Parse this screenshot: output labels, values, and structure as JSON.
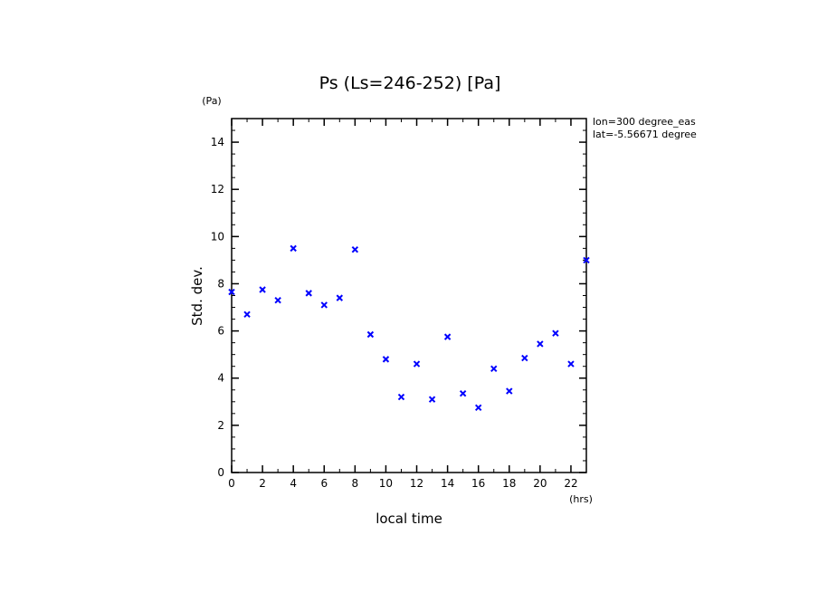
{
  "chart_data": {
    "type": "scatter",
    "title": "Ps (Ls=246-252) [Pa]",
    "xlabel": "local time",
    "ylabel": "Std. dev.",
    "x_unit": "(hrs)",
    "y_unit": "(Pa)",
    "annotations": [
      "lon=300 degree_eas",
      "lat=-5.56671 degree"
    ],
    "xlim": [
      0,
      23
    ],
    "ylim": [
      0,
      15
    ],
    "x_ticks": [
      0,
      2,
      4,
      6,
      8,
      10,
      12,
      14,
      16,
      18,
      20,
      22
    ],
    "x_tick_labels": [
      "0",
      "2",
      "4",
      "6",
      "8",
      "10",
      "12",
      "14",
      "16",
      "18",
      "20",
      "22"
    ],
    "y_ticks": [
      0,
      2,
      4,
      6,
      8,
      10,
      12,
      14
    ],
    "y_tick_labels": [
      "0",
      "2",
      "4",
      "6",
      "8",
      "10",
      "12",
      "14"
    ],
    "marker": "x",
    "marker_color": "#0000ff",
    "grid": false,
    "series": [
      {
        "x": [
          0,
          1,
          2,
          3,
          4,
          5,
          6,
          7,
          8,
          9,
          10,
          11,
          12,
          13,
          14,
          15,
          16,
          17,
          18,
          19,
          20,
          21,
          22,
          23
        ],
        "values": [
          7.65,
          6.7,
          7.75,
          7.3,
          9.5,
          7.6,
          7.1,
          7.4,
          9.45,
          5.85,
          4.8,
          3.2,
          4.6,
          3.1,
          5.75,
          3.35,
          2.75,
          4.4,
          3.45,
          4.85,
          5.45,
          5.9,
          4.6,
          9.0
        ]
      }
    ]
  }
}
